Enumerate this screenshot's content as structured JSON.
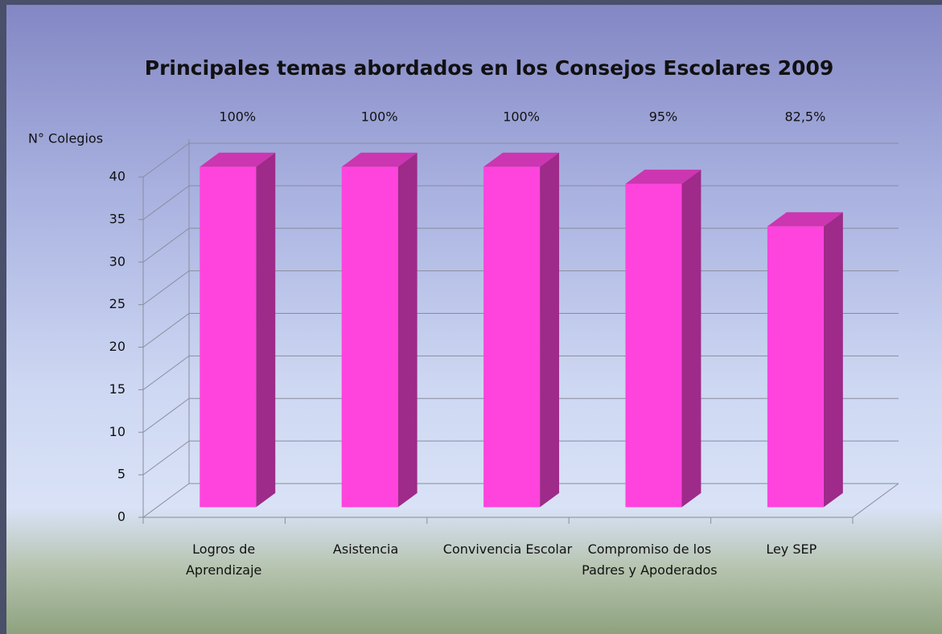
{
  "chart_data": {
    "type": "bar3d",
    "title": "Principales temas abordados en los Consejos Escolares 2009",
    "y_label": "N° Colegios",
    "categories": [
      "Logros de Aprendizaje",
      "Asistencia",
      "Convivencia Escolar",
      "Compromiso de los Padres y Apoderados",
      "Ley SEP"
    ],
    "values": [
      40,
      40,
      40,
      38,
      33
    ],
    "annotations": [
      "100%",
      "100%",
      "100%",
      "95%",
      "82,5%"
    ],
    "color": "#ff44dd",
    "ylim": [
      0,
      40
    ],
    "yticks": [
      0,
      5,
      10,
      15,
      20,
      25,
      30,
      35,
      40
    ],
    "grid": true
  }
}
